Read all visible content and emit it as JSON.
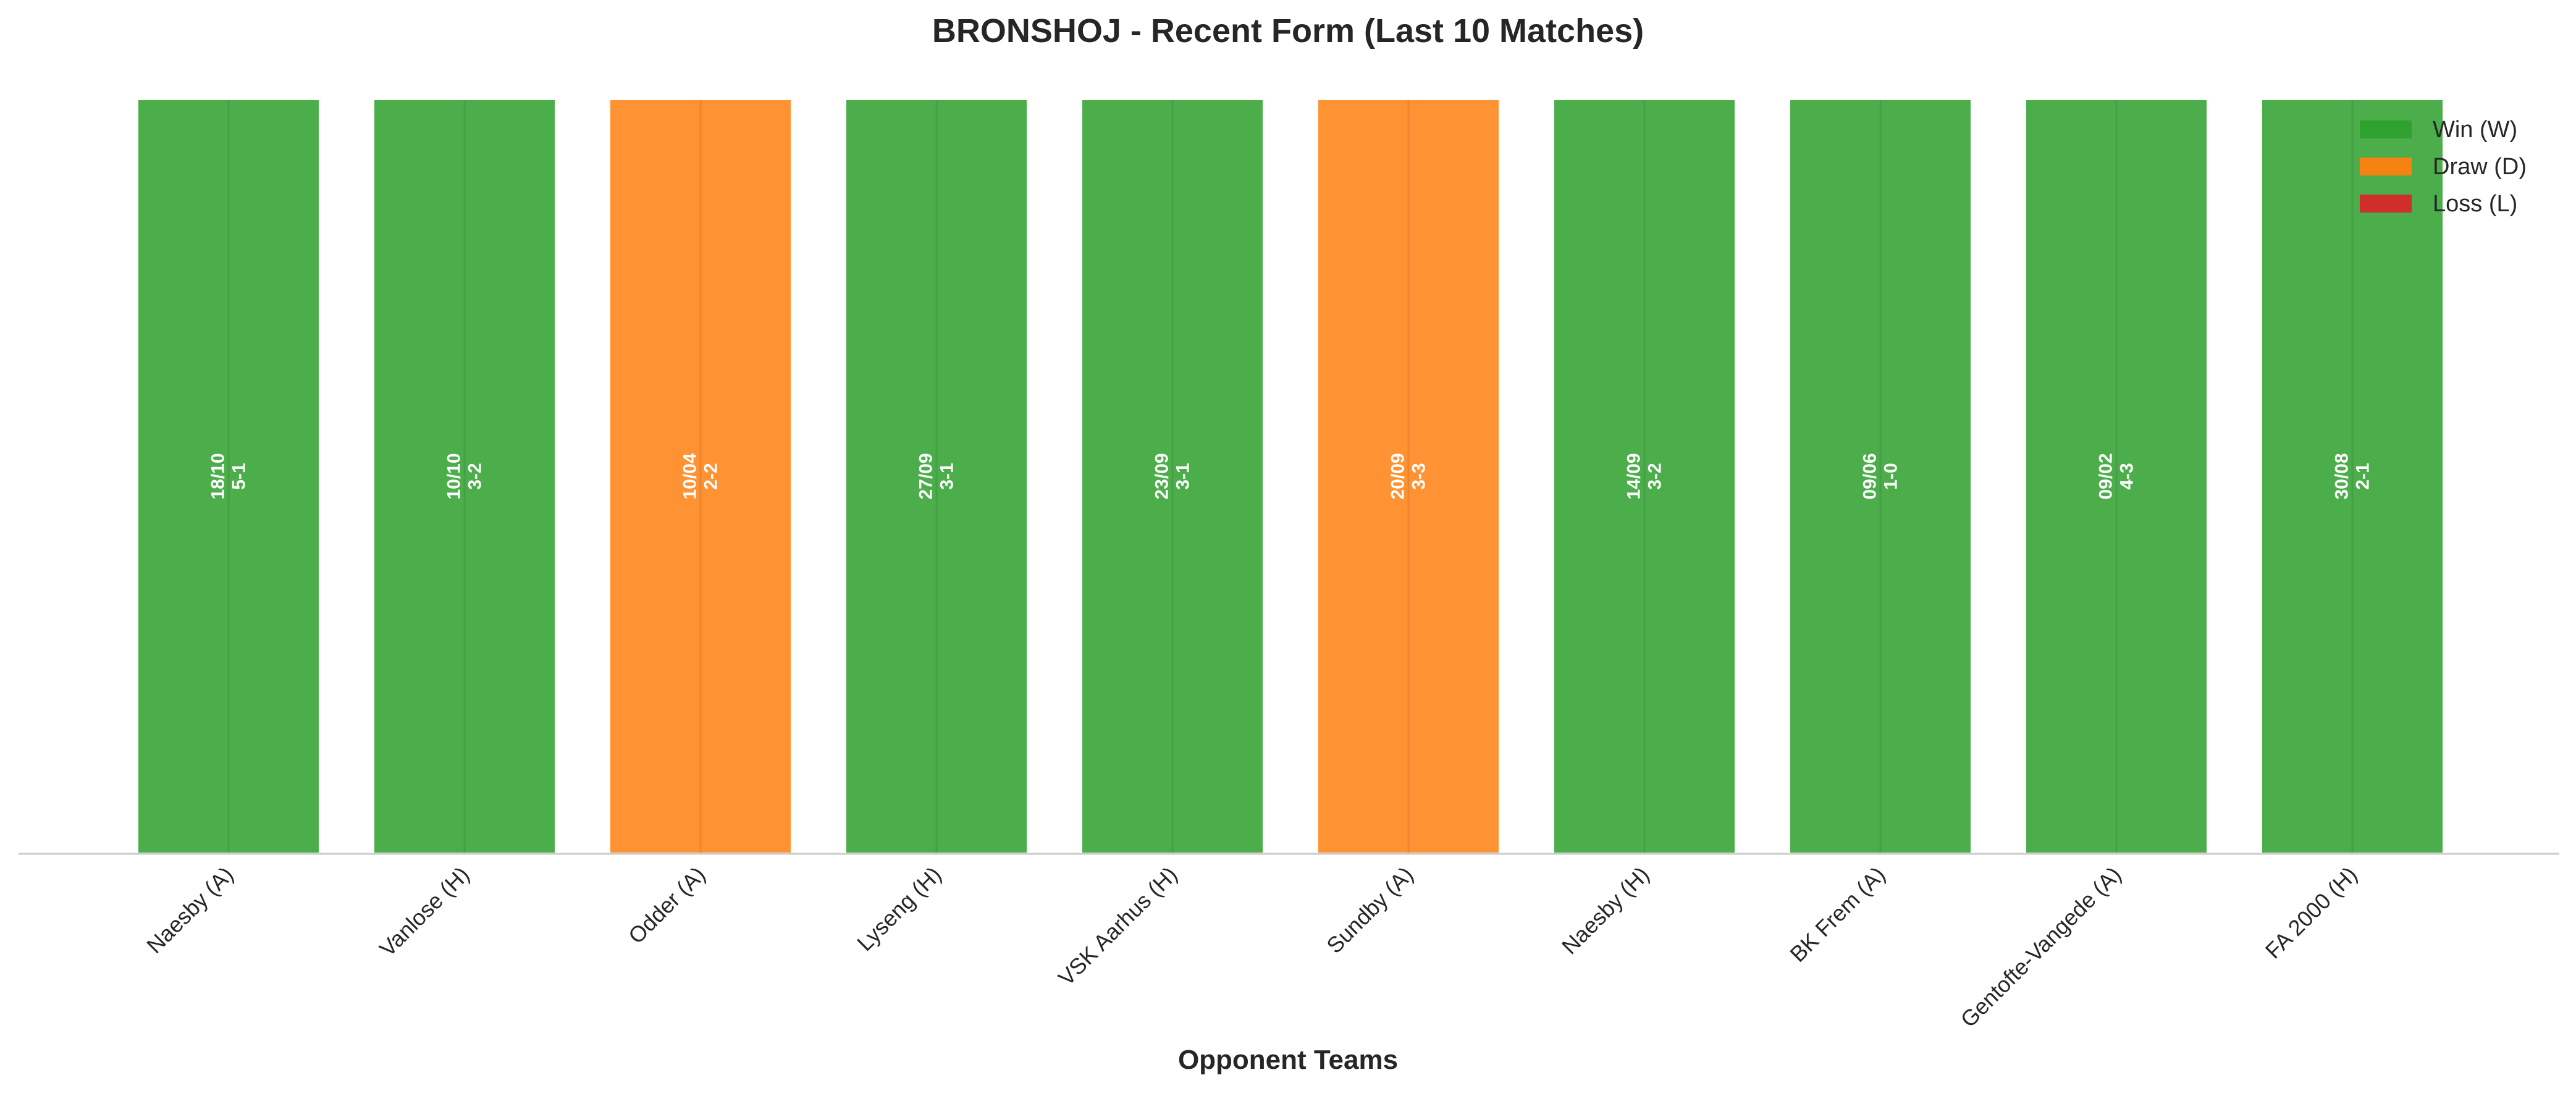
{
  "chart_data": {
    "type": "bar",
    "title": "BRONSHOJ - Recent Form (Last 10 Matches)",
    "xlabel": "Opponent Teams",
    "ylabel": "",
    "grid": true,
    "legend_position": "top-right",
    "categories": [
      "Naesby (A)",
      "Vanlose (H)",
      "Odder (A)",
      "Lyseng (H)",
      "VSK Aarhus (H)",
      "Sundby (A)",
      "Naesby (H)",
      "BK Frem (A)",
      "Gentofte-Vangede (A)",
      "FA 2000 (H)"
    ],
    "values": [
      1,
      1,
      1,
      1,
      1,
      1,
      1,
      1,
      1,
      1
    ],
    "results": [
      "W",
      "W",
      "D",
      "W",
      "W",
      "D",
      "W",
      "W",
      "W",
      "W"
    ],
    "dates": [
      "18/10",
      "10/10",
      "10/04",
      "27/09",
      "23/09",
      "20/09",
      "14/09",
      "09/06",
      "09/02",
      "30/08"
    ],
    "scores": [
      "5-1",
      "3-2",
      "2-2",
      "3-1",
      "3-1",
      "3-3",
      "3-2",
      "1-0",
      "4-3",
      "2-1"
    ],
    "legend": [
      {
        "key": "W",
        "label": "Win (W)",
        "color": "#2ca02c"
      },
      {
        "key": "D",
        "label": "Draw (D)",
        "color": "#ff7f0e"
      },
      {
        "key": "L",
        "label": "Loss (L)",
        "color": "#d62728"
      }
    ],
    "ylim": [
      0,
      1
    ]
  }
}
